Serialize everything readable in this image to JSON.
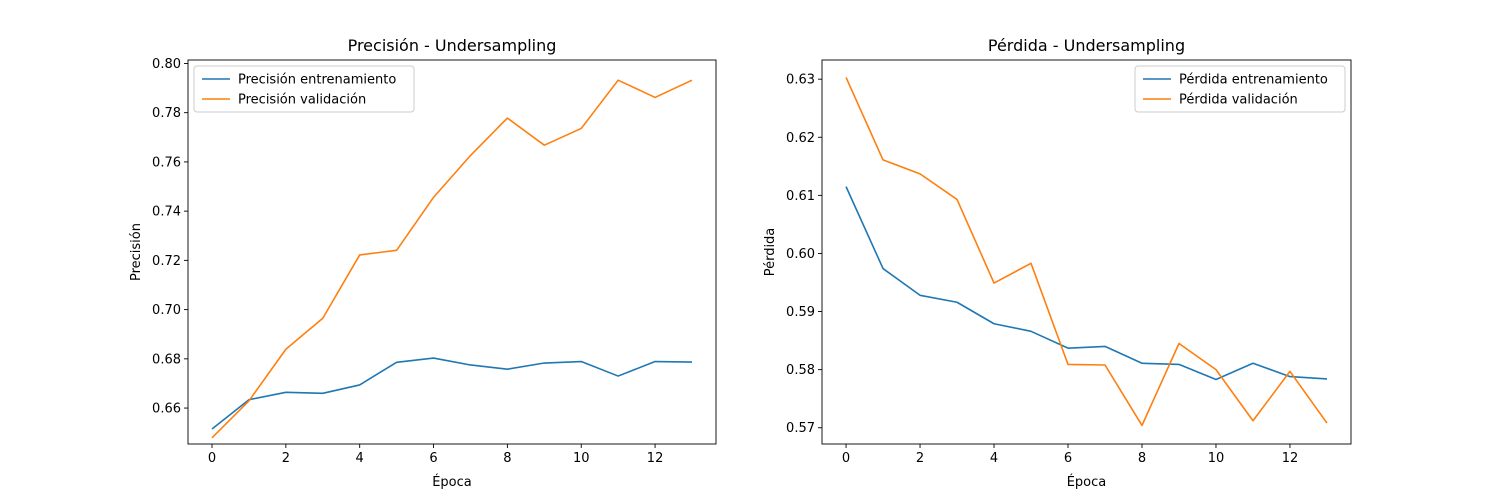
{
  "chart_data": [
    {
      "type": "line",
      "title": "Precisión - Undersampling",
      "xlabel": "Época",
      "ylabel": "Precisión",
      "xlim": [
        -0.65,
        13.65
      ],
      "ylim": [
        0.6454,
        0.8014
      ],
      "xticks": [
        0,
        2,
        4,
        6,
        8,
        10,
        12
      ],
      "yticks": [
        0.66,
        0.68,
        0.7,
        0.72,
        0.74,
        0.76,
        0.78,
        0.8
      ],
      "ytick_labels": [
        "0.66",
        "0.68",
        "0.70",
        "0.72",
        "0.74",
        "0.76",
        "0.78",
        "0.80"
      ],
      "legend_position": "upper-left",
      "grid": false,
      "x": [
        0,
        1,
        2,
        3,
        4,
        5,
        6,
        7,
        8,
        9,
        10,
        11,
        12,
        13
      ],
      "series": [
        {
          "name": "Precisión entrenamiento",
          "color": "#1f77b4",
          "values": [
            0.6515,
            0.6634,
            0.6664,
            0.666,
            0.6694,
            0.6786,
            0.6803,
            0.6775,
            0.6758,
            0.6783,
            0.6789,
            0.673,
            0.6789,
            0.6787
          ]
        },
        {
          "name": "Precisión validación",
          "color": "#ff7f0e",
          "values": [
            0.6479,
            0.6629,
            0.6839,
            0.6965,
            0.7222,
            0.7241,
            0.7456,
            0.7626,
            0.7778,
            0.7668,
            0.7736,
            0.7932,
            0.7862,
            0.7932
          ]
        }
      ]
    },
    {
      "type": "line",
      "title": "Pérdida - Undersampling",
      "xlabel": "Época",
      "ylabel": "Pérdida",
      "xlim": [
        -0.65,
        13.65
      ],
      "ylim": [
        0.5672,
        0.6333
      ],
      "xticks": [
        0,
        2,
        4,
        6,
        8,
        10,
        12
      ],
      "yticks": [
        0.57,
        0.58,
        0.59,
        0.6,
        0.61,
        0.62,
        0.63
      ],
      "ytick_labels": [
        "0.57",
        "0.58",
        "0.59",
        "0.60",
        "0.61",
        "0.62",
        "0.63"
      ],
      "legend_position": "upper-right",
      "grid": false,
      "x": [
        0,
        1,
        2,
        3,
        4,
        5,
        6,
        7,
        8,
        9,
        10,
        11,
        12,
        13
      ],
      "series": [
        {
          "name": "Pérdida entrenamiento",
          "color": "#1f77b4",
          "values": [
            0.6115,
            0.5974,
            0.5928,
            0.5916,
            0.5879,
            0.5866,
            0.5837,
            0.584,
            0.5811,
            0.5809,
            0.5783,
            0.5811,
            0.5788,
            0.5784
          ]
        },
        {
          "name": "Pérdida validación",
          "color": "#ff7f0e",
          "values": [
            0.6303,
            0.6161,
            0.6137,
            0.6093,
            0.5949,
            0.5983,
            0.5809,
            0.5808,
            0.5704,
            0.5845,
            0.58,
            0.5712,
            0.5797,
            0.5708
          ]
        }
      ]
    }
  ]
}
